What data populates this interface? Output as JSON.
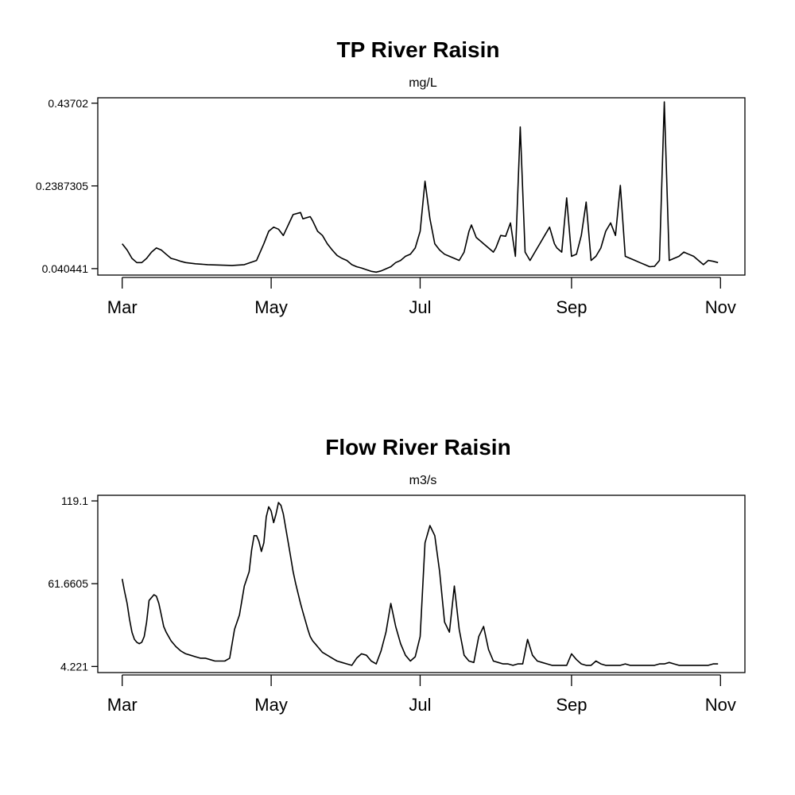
{
  "chart_data": [
    {
      "type": "line",
      "title": "TP River Raisin",
      "subtitle": "mg/L",
      "xlabel": "",
      "ylabel": "",
      "x_ticks": [
        "Mar",
        "May",
        "Jul",
        "Sep",
        "Nov"
      ],
      "x_tick_positions": [
        0,
        61,
        122,
        184,
        245
      ],
      "y_ticks": [
        "0.040441",
        "0.2387305",
        "0.43702"
      ],
      "y_tick_values": [
        0.040441,
        0.2387305,
        0.43702
      ],
      "ylim": [
        0.025,
        0.45
      ],
      "xlim": [
        -10,
        255
      ],
      "grid": false,
      "series": [
        {
          "x": [
            0,
            2,
            4,
            6,
            8,
            10,
            12,
            14,
            16,
            18,
            20,
            22,
            24,
            26,
            30,
            35,
            40,
            45,
            50,
            55,
            58,
            60,
            62,
            64,
            66,
            70,
            73,
            74,
            77,
            78,
            80,
            82,
            84,
            86,
            88,
            90,
            92,
            94,
            96,
            98,
            100,
            102,
            104,
            106,
            108,
            110,
            112,
            114,
            116,
            118,
            120,
            122,
            124,
            126,
            128,
            130,
            132,
            134,
            136,
            138,
            140,
            142,
            143,
            145,
            147,
            148,
            150,
            152,
            153,
            155,
            157,
            159,
            161,
            163,
            165,
            167,
            169,
            171,
            173,
            175,
            177,
            178,
            180,
            182,
            184,
            186,
            188,
            190,
            192,
            194,
            196,
            198,
            200,
            202,
            204,
            206,
            208,
            210,
            212,
            214,
            216,
            218,
            220,
            222,
            224,
            226,
            228,
            230,
            232,
            234,
            236,
            238,
            240,
            242,
            244
          ],
          "y": [
            0.1,
            0.085,
            0.065,
            0.055,
            0.055,
            0.065,
            0.08,
            0.09,
            0.085,
            0.075,
            0.065,
            0.062,
            0.058,
            0.055,
            0.052,
            0.05,
            0.049,
            0.048,
            0.05,
            0.06,
            0.1,
            0.13,
            0.14,
            0.135,
            0.12,
            0.17,
            0.175,
            0.16,
            0.165,
            0.155,
            0.13,
            0.12,
            0.1,
            0.085,
            0.072,
            0.065,
            0.06,
            0.05,
            0.045,
            0.042,
            0.038,
            0.034,
            0.032,
            0.035,
            0.04,
            0.045,
            0.055,
            0.06,
            0.07,
            0.075,
            0.09,
            0.13,
            0.25,
            0.16,
            0.1,
            0.085,
            0.075,
            0.07,
            0.065,
            0.06,
            0.08,
            0.13,
            0.145,
            0.115,
            0.105,
            0.1,
            0.09,
            0.08,
            0.09,
            0.12,
            0.118,
            0.15,
            0.07,
            0.38,
            0.08,
            0.06,
            0.08,
            0.1,
            0.12,
            0.14,
            0.1,
            0.09,
            0.08,
            0.21,
            0.07,
            0.075,
            0.12,
            0.2,
            0.06,
            0.07,
            0.09,
            0.13,
            0.15,
            0.12,
            0.24,
            0.07,
            0.065,
            0.06,
            0.055,
            0.05,
            0.045,
            0.046,
            0.06,
            0.44,
            0.06,
            0.065,
            0.07,
            0.08,
            0.075,
            0.07,
            0.06,
            0.05,
            0.06,
            0.058,
            0.055
          ]
        }
      ]
    },
    {
      "type": "line",
      "title": "Flow River Raisin",
      "subtitle": "m3/s",
      "xlabel": "",
      "ylabel": "",
      "x_ticks": [
        "Mar",
        "May",
        "Jul",
        "Sep",
        "Nov"
      ],
      "x_tick_positions": [
        0,
        61,
        122,
        184,
        245
      ],
      "y_ticks": [
        "4.221",
        "61.6605",
        "119.1"
      ],
      "y_tick_values": [
        4.221,
        61.6605,
        119.1
      ],
      "ylim": [
        0,
        123
      ],
      "xlim": [
        -10,
        255
      ],
      "grid": false,
      "series": [
        {
          "x": [
            0,
            1,
            2,
            3,
            4,
            5,
            6,
            7,
            8,
            9,
            10,
            11,
            12,
            13,
            14,
            15,
            16,
            17,
            18,
            20,
            22,
            24,
            26,
            28,
            30,
            32,
            34,
            36,
            38,
            40,
            42,
            44,
            46,
            48,
            50,
            52,
            53,
            54,
            55,
            56,
            57,
            58,
            59,
            60,
            61,
            62,
            63,
            64,
            65,
            66,
            67,
            68,
            69,
            70,
            71,
            72,
            73,
            74,
            75,
            76,
            77,
            78,
            79,
            80,
            82,
            84,
            86,
            88,
            90,
            92,
            94,
            96,
            98,
            100,
            102,
            104,
            106,
            108,
            110,
            112,
            114,
            116,
            118,
            120,
            122,
            124,
            126,
            128,
            130,
            132,
            134,
            136,
            138,
            140,
            142,
            144,
            146,
            148,
            150,
            152,
            154,
            156,
            158,
            160,
            162,
            164,
            166,
            168,
            170,
            172,
            174,
            176,
            178,
            180,
            182,
            184,
            186,
            188,
            190,
            192,
            194,
            196,
            198,
            200,
            202,
            204,
            206,
            208,
            210,
            212,
            214,
            216,
            218,
            220,
            222,
            224,
            226,
            228,
            230,
            232,
            234,
            236,
            238,
            240,
            242,
            244
          ],
          "y": [
            65,
            56,
            48,
            37,
            28,
            23,
            21,
            20,
            21,
            25,
            35,
            50,
            52,
            54,
            53,
            48,
            40,
            32,
            28,
            22,
            18,
            15,
            13,
            12,
            11,
            10,
            10,
            9,
            8,
            8,
            8,
            10,
            30,
            40,
            60,
            70,
            85,
            95,
            95,
            91,
            84,
            90,
            108,
            115,
            112,
            104,
            110,
            118,
            116,
            110,
            100,
            90,
            80,
            70,
            62,
            55,
            48,
            42,
            36,
            30,
            25,
            22,
            20,
            18,
            14,
            12,
            10,
            8,
            7,
            6,
            5,
            10,
            13,
            12,
            8,
            6,
            15,
            28,
            48,
            32,
            20,
            12,
            8,
            11,
            25,
            90,
            102,
            95,
            70,
            35,
            28,
            60,
            30,
            12,
            8,
            7,
            25,
            32,
            16,
            8,
            7,
            6,
            6,
            5,
            6,
            6,
            23,
            12,
            8,
            7,
            6,
            5,
            5,
            5,
            5,
            13,
            9,
            6,
            5,
            5,
            8,
            6,
            5,
            5,
            5,
            5,
            6,
            5,
            5,
            5,
            5,
            5,
            5,
            6,
            6,
            7,
            6,
            5,
            5,
            5,
            5,
            5,
            5,
            5,
            6,
            6
          ]
        }
      ]
    }
  ]
}
